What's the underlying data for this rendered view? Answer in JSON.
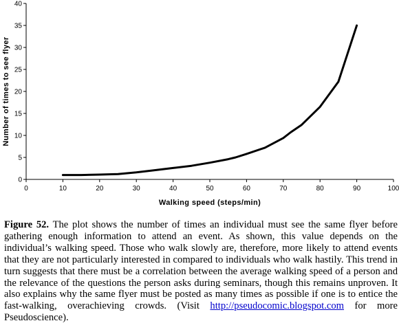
{
  "chart_data": {
    "type": "line",
    "title": "",
    "xlabel": "Walking speed (steps/min)",
    "ylabel": "Number of times to see flyer",
    "xlim": [
      0,
      100
    ],
    "ylim": [
      0,
      40
    ],
    "x_ticks": [
      "0",
      "10",
      "20",
      "30",
      "40",
      "50",
      "60",
      "70",
      "80",
      "90",
      "100"
    ],
    "y_ticks": [
      "0",
      "5",
      "10",
      "15",
      "20",
      "25",
      "30",
      "35",
      "40"
    ],
    "grid": false,
    "legend": "none",
    "line_color": "#000000",
    "series": [
      {
        "x": [
          10,
          15,
          20,
          25,
          30,
          35,
          40,
          45,
          50,
          55,
          57,
          60,
          65,
          70,
          72,
          75,
          80,
          85,
          90
        ],
        "y": [
          1,
          1,
          1.1,
          1.2,
          1.6,
          2.1,
          2.6,
          3.1,
          3.8,
          4.6,
          5.0,
          5.8,
          7.2,
          9.4,
          10.7,
          12.4,
          16.5,
          22.2,
          35
        ]
      }
    ]
  },
  "caption": {
    "label": "Figure 52.",
    "text": " The plot shows the number of times an individual must see the same flyer before gathering enough information to attend an event. As shown, this value depends on the individual’s walking speed. Those who walk slowly are, therefore, more likely to attend events that they are not particularly interested in compared to individuals who walk hastily. This trend in turn suggests that there must be a correlation between the average walking speed of a person and the relevance of the questions the person asks during seminars, though this remains unproven. It also explains why the same flyer must be posted as many times as possible if one is to entice the fast-walking, overachieving crowds. (Visit ",
    "link": "http://pseudocomic.blogspot.com",
    "text_after": " for more Pseudoscience)."
  }
}
